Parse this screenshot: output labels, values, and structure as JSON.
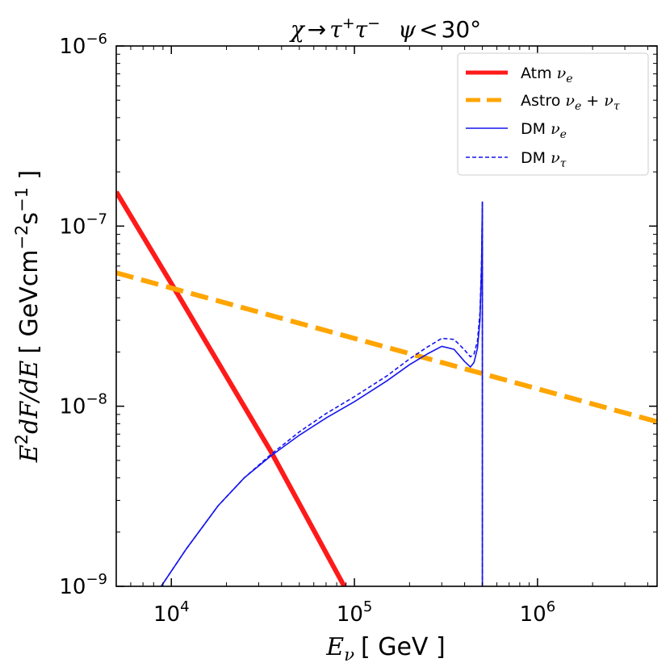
{
  "chart_data": {
    "type": "line",
    "title": {
      "chi": "χ",
      "arrow": "→",
      "tau": "τ",
      "plus": "+",
      "minus": "−",
      "psi": "ψ",
      "lt": "<",
      "angle": "30°"
    },
    "xlabel": {
      "main": "E",
      "sub": "ν",
      "unit": "[ GeV ]"
    },
    "ylabel": {
      "e": "E",
      "two": "2",
      "dfde": "dF/dE",
      "open": "[ GeVcm",
      "exp1": "−2",
      "s": "s",
      "exp2": "−1",
      "close": " ]"
    },
    "xscale": "log",
    "yscale": "log",
    "xlim": [
      5000,
      4500000
    ],
    "ylim": [
      1e-09,
      1e-06
    ],
    "x_ticks": [
      {
        "base": "10",
        "exp": "4",
        "value": 10000
      },
      {
        "base": "10",
        "exp": "5",
        "value": 100000
      },
      {
        "base": "10",
        "exp": "6",
        "value": 1000000
      }
    ],
    "y_ticks": [
      {
        "base": "10",
        "exp": "−9",
        "value": 1e-09
      },
      {
        "base": "10",
        "exp": "−8",
        "value": 1e-08
      },
      {
        "base": "10",
        "exp": "−7",
        "value": 1e-07
      },
      {
        "base": "10",
        "exp": "−6",
        "value": 1e-06
      }
    ],
    "legend_position": "top-right",
    "series": [
      {
        "name": "Atm νe",
        "label_text": "Atm ",
        "label_sym": "ν",
        "label_sub": "e",
        "color": "#ff1a1a",
        "style": "solid-thick",
        "x": [
          5000,
          10000,
          35000,
          88000
        ],
        "y": [
          1.55e-07,
          4.8e-08,
          5.6e-09,
          1e-09
        ]
      },
      {
        "name": "Astro νe + ντ",
        "label_text": "Astro ",
        "label_sym": "ν",
        "label_sub": "e",
        "label_mid": " + ",
        "label_sym2": "ν",
        "label_sub2": "τ",
        "color": "#ffa500",
        "style": "dashed-thick",
        "x": [
          5000,
          4500000
        ],
        "y": [
          5.5e-08,
          8.2e-09
        ]
      },
      {
        "name": "DM νe",
        "label_text": "DM ",
        "label_sym": "ν",
        "label_sub": "e",
        "color": "#1515ee",
        "style": "solid-thin",
        "x": [
          8800,
          12000,
          18000,
          25000,
          35000,
          50000,
          70000,
          100000,
          150000,
          200000,
          250000,
          300000,
          350000,
          400000,
          430000,
          450000,
          470000,
          485000,
          495000,
          500000,
          500000
        ],
        "y": [
          1e-09,
          1.6e-09,
          2.8e-09,
          4e-09,
          5.3e-09,
          6.9e-09,
          8.6e-09,
          1.06e-08,
          1.38e-08,
          1.7e-08,
          1.95e-08,
          2.15e-08,
          2.07e-08,
          1.77e-08,
          1.65e-08,
          1.75e-08,
          2.1e-08,
          3e-08,
          6e-08,
          1.36e-07,
          1e-09
        ]
      },
      {
        "name": "DM ντ",
        "label_text": "DM ",
        "label_sym": "ν",
        "label_sub": "τ",
        "color": "#1515ee",
        "style": "dashed-thin",
        "x": [
          8800,
          12000,
          18000,
          25000,
          35000,
          50000,
          70000,
          100000,
          150000,
          200000,
          250000,
          300000,
          350000,
          400000,
          430000,
          450000,
          470000,
          485000,
          495000,
          500000,
          500000
        ],
        "y": [
          1e-09,
          1.6e-09,
          2.8e-09,
          4e-09,
          5.4e-09,
          7.2e-09,
          9.1e-09,
          1.13e-08,
          1.47e-08,
          1.83e-08,
          2.13e-08,
          2.38e-08,
          2.35e-08,
          2.05e-08,
          1.88e-08,
          1.95e-08,
          2.3e-08,
          3.3e-08,
          6.5e-08,
          1.38e-07,
          1e-09
        ]
      }
    ]
  }
}
